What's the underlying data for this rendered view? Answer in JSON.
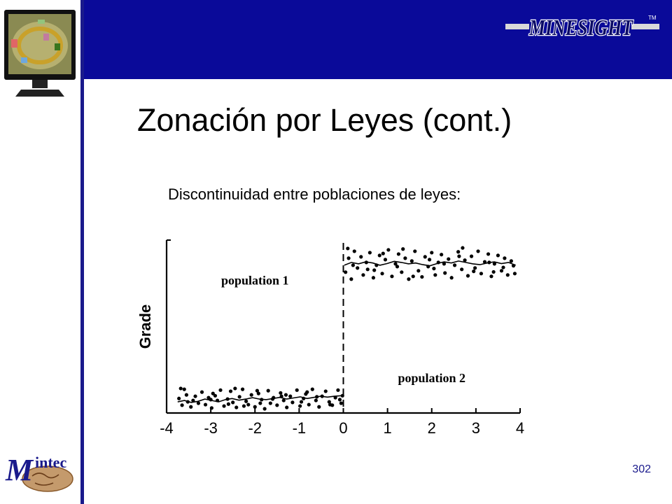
{
  "slide": {
    "title": "Zonación por Leyes (cont.)",
    "subtitle": "Discontinuidad entre poblaciones de leyes:",
    "page_number": "302"
  },
  "branding": {
    "top_logo": "MINESIGHT",
    "bottom_logo": "intec",
    "bottom_logo_initial": "M",
    "header_color": "#0a0a99",
    "accent_color": "#1a1a8c"
  },
  "chart_data": {
    "type": "scatter",
    "ylabel": "Grade",
    "xlim": [
      -4,
      4
    ],
    "x_ticks": [
      "-4",
      "-3",
      "-2",
      "-1",
      "0",
      "1",
      "2",
      "3",
      "4"
    ],
    "annotations": [
      "population 1",
      "population 2"
    ],
    "boundary_x": 0,
    "boundary_style": "dashed vertical line",
    "series": [
      {
        "points_x": [
          -3.72,
          -3.65,
          -3.6,
          -3.52,
          -3.45,
          -3.35,
          -3.28,
          -3.2,
          -3.12,
          -3.05,
          -2.98,
          -2.9,
          -2.85,
          -2.78,
          -2.7,
          -2.62,
          -2.55,
          -2.5,
          -2.42,
          -2.35,
          -2.28,
          -2.2,
          -2.15,
          -2.08,
          -2.0,
          -1.92,
          -1.85,
          -1.78,
          -1.7,
          -1.65,
          -1.58,
          -1.5,
          -1.42,
          -1.35,
          -1.28,
          -1.2,
          -1.15,
          -1.05,
          -0.98,
          -0.9,
          -0.85,
          -0.78,
          -0.7,
          -0.62,
          -0.55,
          -0.48,
          -0.4,
          -0.32,
          -0.25,
          -0.18,
          -0.12,
          -0.05,
          -0.02,
          -3.68,
          -3.4,
          -2.95,
          -2.6,
          -2.25,
          -1.95,
          -1.6,
          -1.3,
          -0.95,
          -0.6,
          -0.3,
          -0.08,
          -3.55,
          -3.0,
          -2.45,
          -1.88,
          -1.4,
          -0.82
        ],
        "points_y": [
          0.52,
          0.28,
          0.85,
          0.4,
          0.22,
          0.6,
          0.35,
          0.75,
          0.3,
          0.55,
          0.18,
          0.62,
          0.45,
          0.82,
          0.25,
          0.5,
          0.78,
          0.38,
          0.2,
          0.58,
          0.85,
          0.42,
          0.3,
          0.65,
          0.22,
          0.7,
          0.48,
          0.15,
          0.8,
          0.35,
          0.55,
          0.28,
          0.72,
          0.45,
          0.2,
          0.6,
          0.38,
          0.82,
          0.25,
          0.52,
          0.68,
          0.3,
          0.85,
          0.45,
          0.22,
          0.6,
          0.78,
          0.4,
          0.28,
          0.55,
          0.82,
          0.35,
          0.62,
          0.88,
          0.45,
          0.7,
          0.32,
          0.25,
          0.8,
          0.5,
          0.65,
          0.4,
          0.58,
          0.3,
          0.48,
          0.65,
          0.48,
          0.88,
          0.35,
          0.6,
          0.75
        ],
        "line_y": [
          0.4,
          0.45,
          0.38,
          0.42,
          0.5,
          0.45,
          0.4,
          0.48,
          0.52,
          0.46,
          0.5,
          0.55,
          0.5,
          0.48,
          0.52,
          0.56,
          0.5,
          0.54,
          0.58,
          0.52,
          0.56,
          0.6,
          0.57,
          0.6,
          0.62
        ]
      },
      {
        "points_x": [
          0.05,
          0.12,
          0.18,
          0.25,
          0.32,
          0.4,
          0.45,
          0.52,
          0.6,
          0.68,
          0.75,
          0.82,
          0.88,
          0.95,
          1.02,
          1.1,
          1.18,
          1.25,
          1.32,
          1.4,
          1.48,
          1.55,
          1.62,
          1.7,
          1.78,
          1.85,
          1.92,
          2.0,
          2.08,
          2.15,
          2.22,
          2.3,
          2.38,
          2.45,
          2.52,
          2.6,
          2.68,
          2.75,
          2.82,
          2.9,
          2.98,
          3.05,
          3.12,
          3.2,
          3.28,
          3.35,
          3.42,
          3.5,
          3.58,
          3.65,
          3.72,
          3.8,
          3.88,
          0.22,
          0.55,
          0.9,
          1.22,
          1.58,
          1.95,
          2.28,
          2.62,
          2.95,
          3.3,
          3.62,
          0.1,
          0.7,
          1.35,
          2.05,
          2.7,
          3.4,
          3.85
        ],
        "points_y": [
          5.05,
          5.55,
          4.8,
          5.8,
          5.2,
          5.6,
          4.95,
          5.4,
          5.75,
          4.85,
          5.3,
          5.65,
          5.0,
          5.5,
          5.85,
          4.9,
          5.35,
          5.7,
          5.05,
          5.55,
          4.8,
          5.45,
          5.8,
          5.1,
          4.88,
          5.6,
          5.25,
          5.75,
          4.95,
          5.4,
          5.68,
          5.02,
          5.52,
          4.85,
          5.3,
          5.78,
          5.15,
          5.48,
          4.92,
          5.62,
          5.2,
          5.8,
          5.0,
          5.42,
          5.7,
          4.9,
          5.35,
          5.65,
          5.1,
          5.55,
          4.95,
          5.45,
          5.0,
          5.3,
          5.15,
          5.72,
          5.25,
          4.9,
          5.5,
          5.35,
          5.62,
          5.08,
          5.4,
          5.22,
          5.9,
          5.12,
          5.88,
          5.18,
          5.92,
          5.06,
          5.28
        ],
        "line_y": [
          5.3,
          5.4,
          5.35,
          5.42,
          5.38,
          5.3,
          5.36,
          5.44,
          5.4,
          5.35,
          5.38,
          5.32,
          5.28,
          5.36,
          5.42,
          5.38,
          5.45,
          5.4,
          5.35,
          5.32,
          5.38,
          5.42,
          5.36,
          5.4,
          5.3
        ]
      }
    ]
  }
}
